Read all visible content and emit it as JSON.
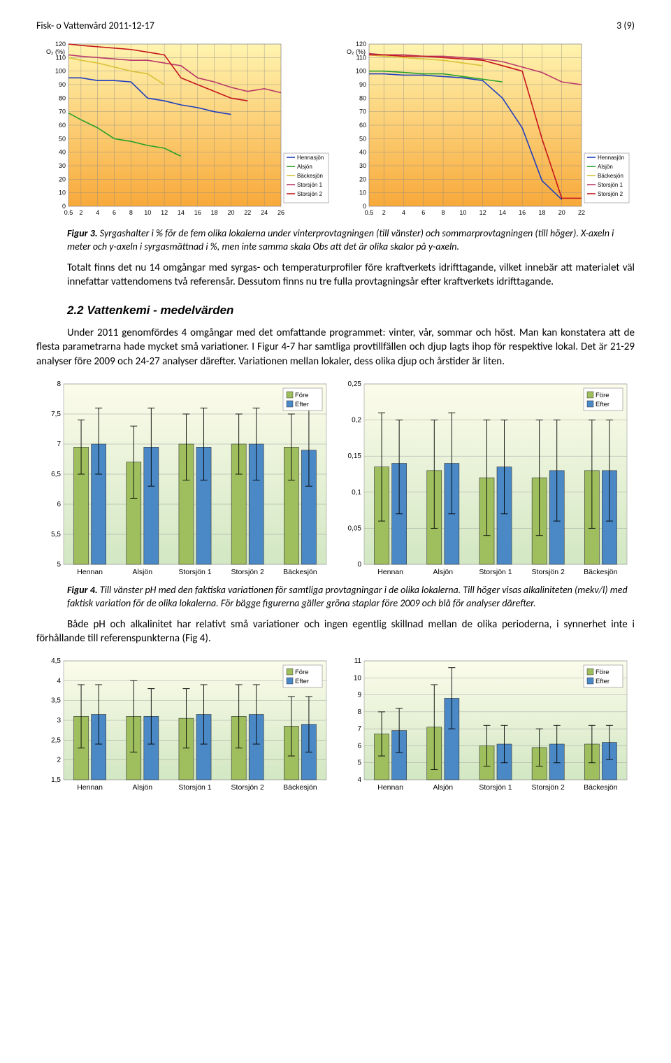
{
  "header": {
    "left": "Fisk- o Vattenvård 2011-12-17",
    "right": "3 (9)"
  },
  "line_charts": {
    "ylabel": "O₂ (%)",
    "yticks": [
      0,
      10,
      20,
      30,
      40,
      50,
      60,
      70,
      80,
      90,
      100,
      110,
      120
    ],
    "chart_left": {
      "xticks": [
        0.5,
        2,
        4,
        6,
        8,
        10,
        12,
        14,
        16,
        18,
        20,
        22,
        24,
        26
      ],
      "bg_top": "#fff4b0",
      "bg_bot": "#f8a93a",
      "series": [
        {
          "name": "Hennasjön",
          "color": "#1f3fbf",
          "pts": [
            [
              0.5,
              95
            ],
            [
              2,
              95
            ],
            [
              4,
              93
            ],
            [
              6,
              93
            ],
            [
              8,
              92
            ],
            [
              10,
              80
            ],
            [
              12,
              78
            ],
            [
              14,
              75
            ],
            [
              16,
              73
            ],
            [
              18,
              70
            ],
            [
              20,
              68
            ]
          ]
        },
        {
          "name": "Alsjön",
          "color": "#2aa02a",
          "pts": [
            [
              0.5,
              69
            ],
            [
              2,
              64
            ],
            [
              4,
              58
            ],
            [
              6,
              50
            ],
            [
              8,
              48
            ],
            [
              10,
              45
            ],
            [
              12,
              43
            ],
            [
              14,
              37
            ]
          ]
        },
        {
          "name": "Bäckesjön",
          "color": "#d9c237",
          "pts": [
            [
              0.5,
              110
            ],
            [
              2,
              108
            ],
            [
              4,
              106
            ],
            [
              6,
              103
            ],
            [
              8,
              100
            ],
            [
              10,
              98
            ],
            [
              12,
              90
            ]
          ]
        },
        {
          "name": "Storsjön 1",
          "color": "#b93a6a",
          "pts": [
            [
              0.5,
              112
            ],
            [
              2,
              111
            ],
            [
              4,
              110
            ],
            [
              6,
              109
            ],
            [
              8,
              108
            ],
            [
              10,
              108
            ],
            [
              12,
              106
            ],
            [
              14,
              104
            ],
            [
              16,
              95
            ],
            [
              18,
              92
            ],
            [
              20,
              88
            ],
            [
              22,
              85
            ],
            [
              24,
              87
            ],
            [
              26,
              84
            ]
          ]
        },
        {
          "name": "Storsjön 2",
          "color": "#c5151d",
          "pts": [
            [
              0.5,
              120
            ],
            [
              2,
              119
            ],
            [
              4,
              118
            ],
            [
              6,
              117
            ],
            [
              8,
              116
            ],
            [
              10,
              114
            ],
            [
              12,
              112
            ],
            [
              14,
              95
            ],
            [
              16,
              90
            ],
            [
              18,
              85
            ],
            [
              20,
              80
            ],
            [
              22,
              78
            ]
          ]
        }
      ],
      "legend": [
        "Hennasjön",
        "Alsjön",
        "Bäckesjön",
        "Storsjön 1",
        "Storsjön 2"
      ]
    },
    "chart_right": {
      "xticks": [
        0.5,
        2,
        4,
        6,
        8,
        10,
        12,
        14,
        16,
        18,
        20,
        22
      ],
      "bg_top": "#fff4b0",
      "bg_bot": "#f8a93a",
      "series": [
        {
          "name": "Hennasjön",
          "color": "#1f3fbf",
          "pts": [
            [
              0.5,
              98
            ],
            [
              2,
              98
            ],
            [
              4,
              97
            ],
            [
              6,
              97
            ],
            [
              8,
              96
            ],
            [
              10,
              95
            ],
            [
              12,
              93
            ],
            [
              14,
              80
            ],
            [
              16,
              58
            ],
            [
              18,
              19
            ],
            [
              20,
              5
            ]
          ]
        },
        {
          "name": "Alsjön",
          "color": "#2aa02a",
          "pts": [
            [
              0.5,
              100
            ],
            [
              2,
              100
            ],
            [
              4,
              99
            ],
            [
              6,
              98
            ],
            [
              8,
              98
            ],
            [
              10,
              96
            ],
            [
              12,
              94
            ],
            [
              14,
              92
            ]
          ]
        },
        {
          "name": "Bäckesjön",
          "color": "#d9c237",
          "pts": [
            [
              0.5,
              112
            ],
            [
              2,
              111
            ],
            [
              4,
              110
            ],
            [
              6,
              109
            ],
            [
              8,
              108
            ],
            [
              10,
              106
            ],
            [
              12,
              104
            ]
          ]
        },
        {
          "name": "Storsjön 1",
          "color": "#b93a6a",
          "pts": [
            [
              0.5,
              113
            ],
            [
              2,
              112
            ],
            [
              4,
              112
            ],
            [
              6,
              111
            ],
            [
              8,
              111
            ],
            [
              10,
              110
            ],
            [
              12,
              109
            ],
            [
              14,
              107
            ],
            [
              16,
              103
            ],
            [
              18,
              99
            ],
            [
              20,
              92
            ],
            [
              22,
              90
            ]
          ]
        },
        {
          "name": "Storsjön 2",
          "color": "#c5151d",
          "pts": [
            [
              0.5,
              112
            ],
            [
              2,
              112
            ],
            [
              4,
              111
            ],
            [
              6,
              111
            ],
            [
              8,
              110
            ],
            [
              10,
              109
            ],
            [
              12,
              108
            ],
            [
              14,
              104
            ],
            [
              16,
              100
            ],
            [
              18,
              50
            ],
            [
              20,
              6
            ],
            [
              22,
              6
            ]
          ]
        }
      ],
      "legend": [
        "Hennasjön",
        "Alsjön",
        "Bäckesjön",
        "Storsjön 1",
        "Storsjön 2"
      ]
    }
  },
  "caption3_label": "Figur 3.",
  "caption3_text": " Syrgashalter i % för de fem olika lokalerna under vinterprovtagningen (till vänster) och sommarprovtagningen (till höger). X-axeln i meter och y-axeln i syrgasmättnad i %, men inte samma skala Obs att det är olika skalor på y-axeln.",
  "para_after_fig3": "Totalt finns det nu 14 omgångar med syrgas- och temperaturprofiler före kraftverkets idrifttagande, vilket innebär att materialet väl innefattar vattendomens två referensår. Dessutom finns nu tre fulla provtagningsår efter kraftverkets idrifttagande.",
  "section_2_2": "2.2   Vattenkemi - medelvärden",
  "para_2_2": "Under 2011 genomfördes 4 omgångar med det omfattande programmet: vinter, vår, sommar och höst. Man kan konstatera att de flesta parametrarna hade mycket små variationer. I Figur 4-7 har samtliga provtillfällen och djup lagts ihop för respektive lokal. Det är 21-29  analyser före 2009 och 24-27  analyser därefter. Variationen mellan lokaler, dess olika djup och årstider är liten.",
  "bar_pair_1": {
    "categories": [
      "Hennan",
      "Alsjön",
      "Storsjön 1",
      "Storsjön 2",
      "Bäckesjön"
    ],
    "legend": [
      "Före",
      "Efter"
    ],
    "colors": {
      "fore": "#9fbf5f",
      "efter": "#4a88c6",
      "border": "#333",
      "err": "#000",
      "bg1": "#fcfceb",
      "bg2": "#d2e7c3"
    },
    "left": {
      "ylim": [
        5,
        8
      ],
      "yticks": [
        5,
        5.5,
        6,
        6.5,
        7,
        7.5,
        8
      ],
      "data": [
        {
          "f": 6.95,
          "flo": 6.5,
          "fhi": 7.4,
          "e": 7.0,
          "elo": 6.5,
          "ehi": 7.6
        },
        {
          "f": 6.7,
          "flo": 6.1,
          "fhi": 7.3,
          "e": 6.95,
          "elo": 6.3,
          "ehi": 7.6
        },
        {
          "f": 7.0,
          "flo": 6.4,
          "fhi": 7.5,
          "e": 6.95,
          "elo": 6.4,
          "ehi": 7.6
        },
        {
          "f": 7.0,
          "flo": 6.5,
          "fhi": 7.5,
          "e": 7.0,
          "elo": 6.4,
          "ehi": 7.6
        },
        {
          "f": 6.95,
          "flo": 6.4,
          "fhi": 7.5,
          "e": 6.9,
          "elo": 6.3,
          "ehi": 7.6
        }
      ]
    },
    "right": {
      "ylim": [
        0,
        0.25
      ],
      "yticks": [
        0,
        0.05,
        0.1,
        0.15,
        0.2,
        0.25
      ],
      "data": [
        {
          "f": 0.135,
          "flo": 0.06,
          "fhi": 0.21,
          "e": 0.14,
          "elo": 0.07,
          "ehi": 0.2
        },
        {
          "f": 0.13,
          "flo": 0.05,
          "fhi": 0.2,
          "e": 0.14,
          "elo": 0.07,
          "ehi": 0.21
        },
        {
          "f": 0.12,
          "flo": 0.04,
          "fhi": 0.2,
          "e": 0.135,
          "elo": 0.07,
          "ehi": 0.2
        },
        {
          "f": 0.12,
          "flo": 0.04,
          "fhi": 0.2,
          "e": 0.13,
          "elo": 0.06,
          "ehi": 0.2
        },
        {
          "f": 0.13,
          "flo": 0.05,
          "fhi": 0.2,
          "e": 0.13,
          "elo": 0.06,
          "ehi": 0.2
        }
      ]
    }
  },
  "caption4_label": "Figur 4.",
  "caption4_text": " Till vänster pH med den faktiska variationen för samtliga provtagningar i de olika lokalerna. Till höger visas alkaliniteten (mekv/l) med faktisk variation för de olika lokalerna. För bägge figurerna gäller gröna staplar före 2009 och blå för analyser därefter.",
  "para_after_fig4": "Både pH och alkalinitet har relativt små variationer och ingen egentlig skillnad mellan de olika perioderna, i synnerhet inte i förhållande till referenspunkterna (Fig 4).",
  "bar_pair_2": {
    "categories": [
      "Hennan",
      "Alsjön",
      "Storsjön 1",
      "Storsjön 2",
      "Bäckesjön"
    ],
    "legend": [
      "Före",
      "Efter"
    ],
    "colors": {
      "fore": "#9fbf5f",
      "efter": "#4a88c6",
      "border": "#333",
      "err": "#000",
      "bg1": "#fcfceb",
      "bg2": "#d2e7c3"
    },
    "left": {
      "ylim": [
        1.5,
        4.5
      ],
      "yticks": [
        1.5,
        2,
        2.5,
        3,
        3.5,
        4,
        4.5
      ],
      "data": [
        {
          "f": 3.1,
          "flo": 2.3,
          "fhi": 3.9,
          "e": 3.15,
          "elo": 2.4,
          "ehi": 3.9
        },
        {
          "f": 3.1,
          "flo": 2.2,
          "fhi": 4.0,
          "e": 3.1,
          "elo": 2.4,
          "ehi": 3.8
        },
        {
          "f": 3.05,
          "flo": 2.3,
          "fhi": 3.8,
          "e": 3.15,
          "elo": 2.4,
          "ehi": 3.9
        },
        {
          "f": 3.1,
          "flo": 2.3,
          "fhi": 3.9,
          "e": 3.15,
          "elo": 2.4,
          "ehi": 3.9
        },
        {
          "f": 2.85,
          "flo": 2.1,
          "fhi": 3.6,
          "e": 2.9,
          "elo": 2.2,
          "ehi": 3.6
        }
      ]
    },
    "right": {
      "ylim": [
        4,
        11
      ],
      "yticks": [
        4,
        5,
        6,
        7,
        8,
        9,
        10,
        11
      ],
      "data": [
        {
          "f": 6.7,
          "flo": 5.4,
          "fhi": 8.0,
          "e": 6.9,
          "elo": 5.6,
          "ehi": 8.2
        },
        {
          "f": 7.1,
          "flo": 4.6,
          "fhi": 9.6,
          "e": 8.8,
          "elo": 7.0,
          "ehi": 10.6
        },
        {
          "f": 6.0,
          "flo": 4.8,
          "fhi": 7.2,
          "e": 6.1,
          "elo": 5.0,
          "ehi": 7.2
        },
        {
          "f": 5.9,
          "flo": 4.8,
          "fhi": 7.0,
          "e": 6.1,
          "elo": 5.0,
          "ehi": 7.2
        },
        {
          "f": 6.1,
          "flo": 5.0,
          "fhi": 7.2,
          "e": 6.2,
          "elo": 5.2,
          "ehi": 7.2
        }
      ]
    }
  }
}
